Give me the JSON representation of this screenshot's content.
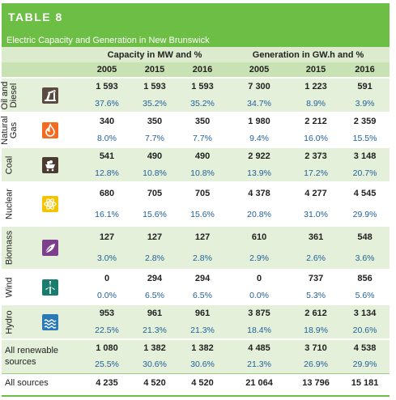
{
  "table": {
    "label": "TABLE 8",
    "title": "Electric Capacity and Generation in New Brunswick",
    "group_capacity": "Capacity in MW and %",
    "group_generation": "Generation in GW.h and %",
    "years": [
      "2005",
      "2015",
      "2016",
      "2005",
      "2015",
      "2016"
    ]
  },
  "rows": [
    {
      "label": "Oil and Diesel",
      "icon": "oil-pump-icon",
      "color": "#5a4a3f",
      "values": [
        "1 593",
        "1 593",
        "1 593",
        "7 300",
        "1 223",
        "591"
      ],
      "percents": [
        "37.6%",
        "35.2%",
        "35.2%",
        "34.7%",
        "8.9%",
        "3.9%"
      ]
    },
    {
      "label": "Natural Gas",
      "icon": "flame-icon",
      "color": "#f26b21",
      "values": [
        "340",
        "350",
        "350",
        "1 980",
        "2 212",
        "2 359"
      ],
      "percents": [
        "8.0%",
        "7.7%",
        "7.7%",
        "9.4%",
        "16.0%",
        "15.5%"
      ]
    },
    {
      "label": "Coal",
      "icon": "coal-cart-icon",
      "color": "#4a3a30",
      "values": [
        "541",
        "490",
        "490",
        "2 922",
        "2 373",
        "3 148"
      ],
      "percents": [
        "12.8%",
        "10.8%",
        "10.8%",
        "13.9%",
        "17.2%",
        "20.7%"
      ]
    },
    {
      "label": "Nuclear",
      "icon": "atom-icon",
      "color": "#f5c400",
      "values": [
        "680",
        "705",
        "705",
        "4 378",
        "4 277",
        "4 545"
      ],
      "percents": [
        "16.1%",
        "15.6%",
        "15.6%",
        "20.8%",
        "31.0%",
        "29.9%"
      ]
    },
    {
      "label": "Biomass",
      "icon": "leaf-icon",
      "color": "#7b3f8c",
      "values": [
        "127",
        "127",
        "127",
        "610",
        "361",
        "548"
      ],
      "percents": [
        "3.0%",
        "2.8%",
        "2.8%",
        "2.9%",
        "2.6%",
        "3.6%"
      ]
    },
    {
      "label": "Wind",
      "icon": "wind-turbine-icon",
      "color": "#1a7c6c",
      "values": [
        "0",
        "294",
        "294",
        "0",
        "737",
        "856"
      ],
      "percents": [
        "0.0%",
        "6.5%",
        "6.5%",
        "0.0%",
        "5.3%",
        "5.6%"
      ]
    },
    {
      "label": "Hydro",
      "icon": "waves-icon",
      "color": "#2a7ab8",
      "values": [
        "953",
        "961",
        "961",
        "3 875",
        "2 612",
        "3 134"
      ],
      "percents": [
        "22.5%",
        "21.3%",
        "21.3%",
        "18.4%",
        "18.9%",
        "20.6%"
      ]
    }
  ],
  "renewable": {
    "label_line1": "All renewable",
    "label_line2": "sources",
    "values": [
      "1 080",
      "1 382",
      "1 382",
      "4 485",
      "3 710",
      "4 538"
    ],
    "percents": [
      "25.5%",
      "30.6%",
      "30.6%",
      "21.3%",
      "26.9%",
      "29.9%"
    ]
  },
  "total": {
    "label": "All sources",
    "values": [
      "4 235",
      "4 520",
      "4 520",
      "21 064",
      "13 796",
      "15 181"
    ]
  },
  "colors": {
    "green": "#6dbe45",
    "light_green": "#e4f0d9",
    "percent_blue": "#1f5f9a"
  }
}
